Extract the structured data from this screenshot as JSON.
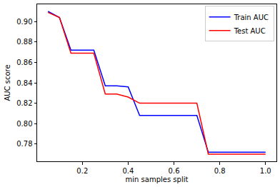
{
  "chart_data": {
    "type": "line",
    "x_label": "min samples split",
    "y_label": "AUC score",
    "x": [
      0.05,
      0.1,
      0.15,
      0.2,
      0.25,
      0.3,
      0.35,
      0.4,
      0.45,
      0.5,
      0.55,
      0.6,
      0.65,
      0.7,
      0.75,
      0.8,
      0.85,
      0.9,
      0.95,
      1.0
    ],
    "series": [
      {
        "name": "Train AUC",
        "color": "#0000ff",
        "values": [
          0.91,
          0.904,
          0.872,
          0.872,
          0.872,
          0.837,
          0.837,
          0.836,
          0.808,
          0.808,
          0.808,
          0.808,
          0.808,
          0.808,
          0.772,
          0.772,
          0.772,
          0.772,
          0.772,
          0.772
        ]
      },
      {
        "name": "Test AUC",
        "color": "#ff0000",
        "values": [
          0.909,
          0.904,
          0.869,
          0.869,
          0.869,
          0.829,
          0.829,
          0.826,
          0.82,
          0.82,
          0.82,
          0.82,
          0.82,
          0.82,
          0.77,
          0.77,
          0.77,
          0.77,
          0.77,
          0.77
        ]
      }
    ],
    "xlim": [
      0.0025,
      1.0475
    ],
    "xticks": [
      0.2,
      0.4,
      0.6,
      0.8,
      {
        "value": 1,
        "label": "1.0"
      }
    ],
    "ylim": [
      0.763,
      0.917
    ],
    "yticks": [
      0.78,
      {
        "value": 0.8,
        "label": "0.80"
      },
      0.82,
      0.84,
      0.86,
      0.88,
      {
        "value": 0.9,
        "label": "0.90"
      }
    ],
    "grid": false,
    "legend": "upper right"
  }
}
